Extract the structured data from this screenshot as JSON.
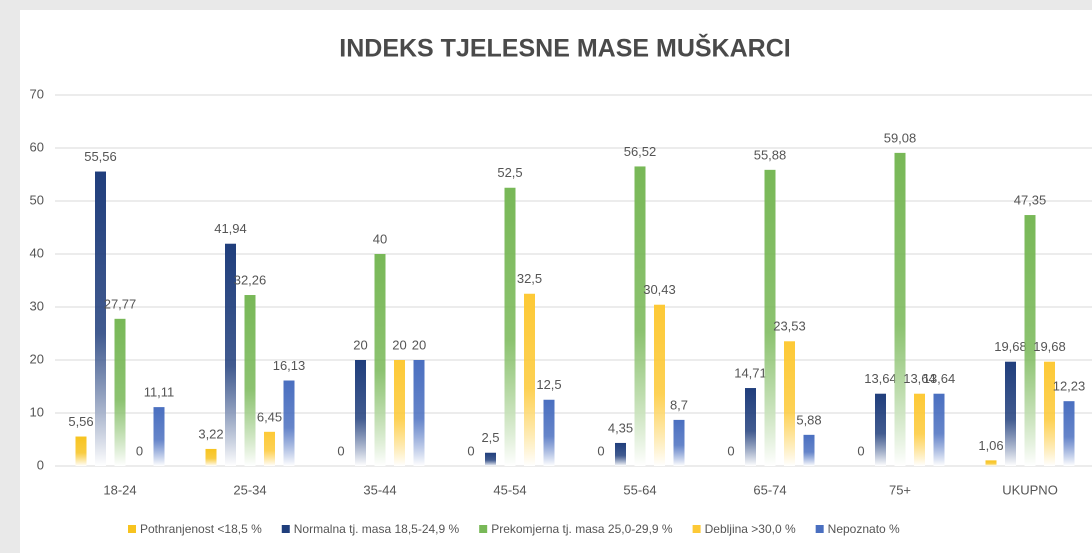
{
  "chart_data": {
    "type": "bar",
    "title": "INDEKS TJELESNE MASE MUŠKARCI",
    "categories": [
      "18-24",
      "25-34",
      "35-44",
      "45-54",
      "55-64",
      "65-74",
      "75+",
      "UKUPNO"
    ],
    "series": [
      {
        "name": "Pothranjenost <18,5 %",
        "color": "#f7c31f",
        "values": [
          5.56,
          3.22,
          0,
          0,
          0,
          0,
          0,
          1.06
        ],
        "value_labels": [
          "5,56",
          "3,22",
          "0",
          "0",
          "0",
          "0",
          "0",
          "1,06"
        ]
      },
      {
        "name": "Normalna tj. masa 18,5-24,9 %",
        "color": "#203e7c",
        "values": [
          55.56,
          41.94,
          20,
          2.5,
          4.35,
          14.71,
          13.64,
          19.68
        ],
        "value_labels": [
          "55,56",
          "41,94",
          "20",
          "2,5",
          "4,35",
          "14,71",
          "13,64",
          "19,68"
        ]
      },
      {
        "name": "Prekomjerna tj. masa 25,0-29,9 %",
        "color": "#78b857",
        "values": [
          27.77,
          32.26,
          40,
          52.5,
          56.52,
          55.88,
          59.08,
          47.35
        ],
        "value_labels": [
          "27,77",
          "32,26",
          "40",
          "52,5",
          "56,52",
          "55,88",
          "59,08",
          "47,35"
        ]
      },
      {
        "name": "Debljina >30,0 %",
        "color": "#fdc936",
        "values": [
          0,
          6.45,
          20,
          32.5,
          30.43,
          23.53,
          13.64,
          19.68
        ],
        "value_labels": [
          "0",
          "6,45",
          "20",
          "32,5",
          "30,43",
          "23,53",
          "13,64",
          "19,68"
        ]
      },
      {
        "name": "Nepoznato %",
        "color": "#4a6fc0",
        "values": [
          11.11,
          16.13,
          20,
          12.5,
          8.7,
          5.88,
          13.64,
          12.23
        ],
        "value_labels": [
          "11,11",
          "16,13",
          "20",
          "12,5",
          "8,7",
          "5,88",
          "13,64",
          "12,23"
        ]
      }
    ],
    "ylim": [
      0,
      70
    ],
    "yticks": [
      0,
      10,
      20,
      30,
      40,
      50,
      60,
      70
    ],
    "grid": true,
    "legend": "bottom"
  }
}
